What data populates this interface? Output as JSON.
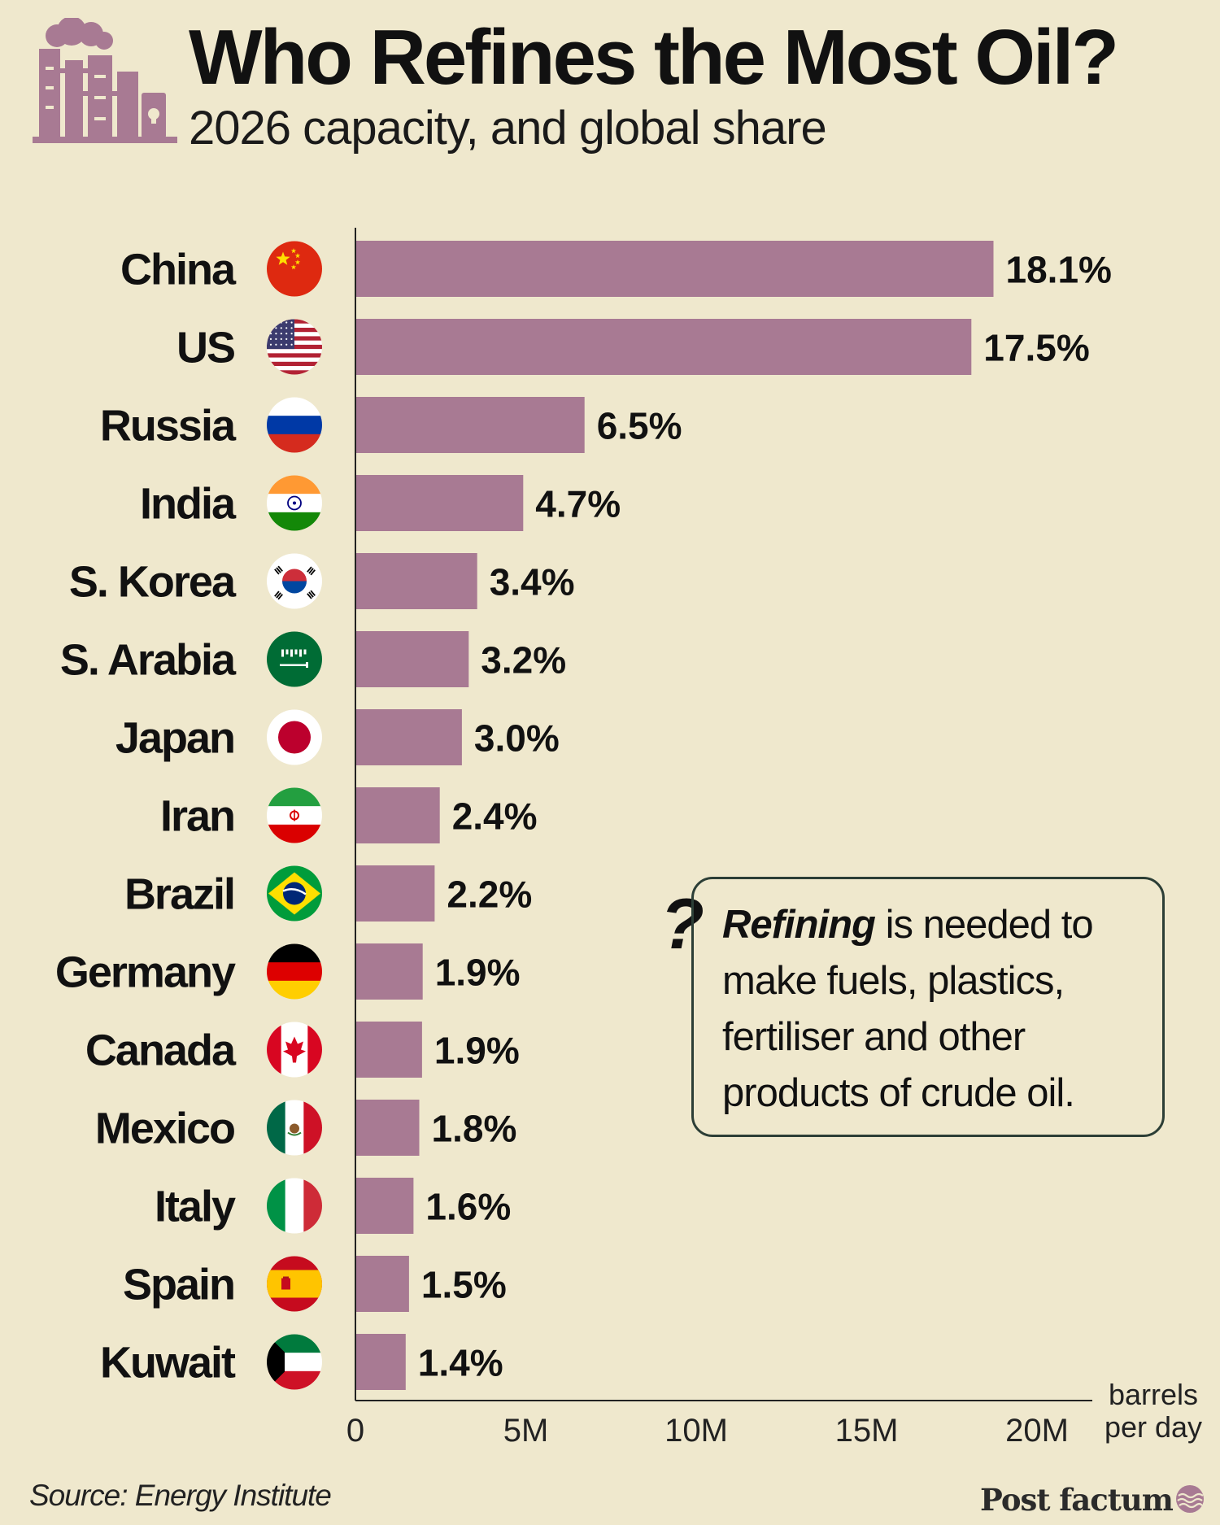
{
  "header": {
    "title": "Who Refines the Most Oil?",
    "subtitle": "2026 capacity, and global share"
  },
  "icons": {
    "logo": "refinery-icon",
    "brand": "wave-circle-icon"
  },
  "colors": {
    "background": "#efe8cd",
    "bar": "#a87a93",
    "logo": "#a87a93",
    "text": "#111111",
    "box_border": "#2c3e36"
  },
  "chart_data": {
    "type": "bar",
    "orientation": "horizontal",
    "unit_label": [
      "barrels",
      "per day"
    ],
    "xlim": [
      0,
      21000000
    ],
    "ticks": [
      {
        "value": 0,
        "label": "0"
      },
      {
        "value": 5000000,
        "label": "5M"
      },
      {
        "value": 10000000,
        "label": "10M"
      },
      {
        "value": 15000000,
        "label": "15M"
      },
      {
        "value": 20000000,
        "label": "20M"
      }
    ],
    "categories": [
      "China",
      "US",
      "Russia",
      "India",
      "S. Korea",
      "S. Arabia",
      "Japan",
      "Iran",
      "Brazil",
      "Germany",
      "Canada",
      "Mexico",
      "Italy",
      "Spain",
      "Kuwait"
    ],
    "values": [
      18700000,
      18050000,
      6700000,
      4900000,
      3550000,
      3300000,
      3100000,
      2450000,
      2300000,
      1950000,
      1930000,
      1850000,
      1680000,
      1550000,
      1450000
    ],
    "labels": [
      "18.1%",
      "17.5%",
      "6.5%",
      "4.7%",
      "3.4%",
      "3.2%",
      "3.0%",
      "2.4%",
      "2.2%",
      "1.9%",
      "1.9%",
      "1.8%",
      "1.6%",
      "1.5%",
      "1.4%"
    ],
    "flags": [
      "china",
      "us",
      "russia",
      "india",
      "south-korea",
      "saudi-arabia",
      "japan",
      "iran",
      "brazil",
      "germany",
      "canada",
      "mexico",
      "italy",
      "spain",
      "kuwait"
    ],
    "grid": false
  },
  "note": {
    "mark": "?",
    "emphasis": "Refining",
    "lines": [
      " is needed to",
      "make fuels, plastics,",
      "fertiliser and other",
      "products of crude oil."
    ]
  },
  "footer": {
    "source": "Source: Energy Institute",
    "brand": "Post factum"
  }
}
